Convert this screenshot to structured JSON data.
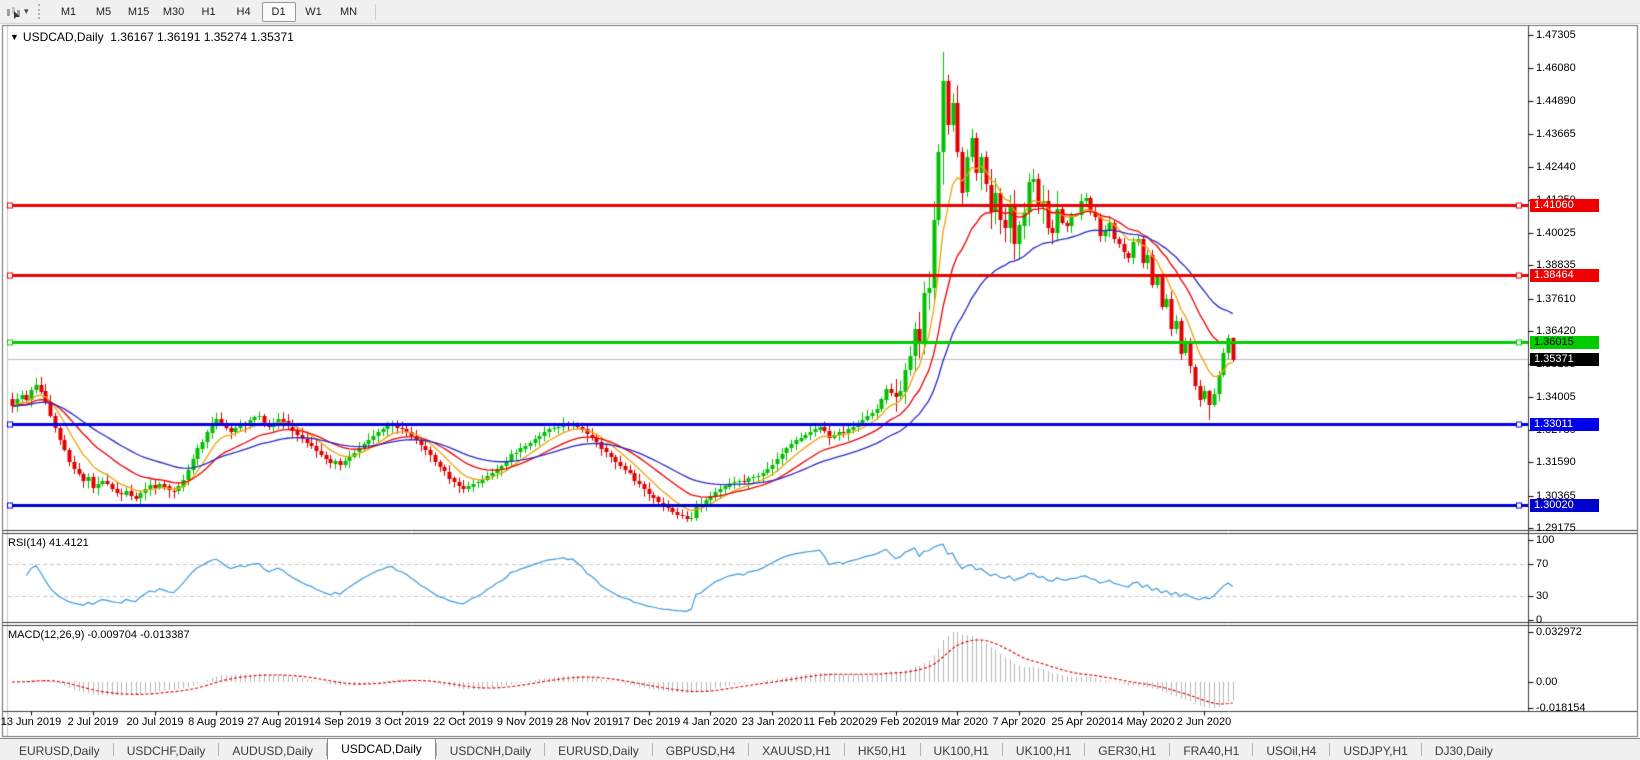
{
  "toolbar": {
    "timeframes": [
      "M1",
      "M5",
      "M15",
      "M30",
      "H1",
      "H4",
      "D1",
      "W1",
      "MN"
    ],
    "active_timeframe": "D1"
  },
  "chart_header": {
    "title": "USDCAD,Daily",
    "ohlc_values": "1.36167 1.36191 1.35274 1.35371"
  },
  "indicators": {
    "rsi_label": "RSI(14) 41.4121",
    "macd_label": "MACD(12,26,9) -0.009704 -0.013387"
  },
  "icons": {
    "title_marker": "▼",
    "dropdown_caret": "▾",
    "tab_scroll_left": "◂",
    "tab_scroll_right": "▸"
  },
  "tabs": {
    "items": [
      "EURUSD,Daily",
      "USDCHF,Daily",
      "AUDUSD,Daily",
      "USDCAD,Daily",
      "USDCNH,Daily",
      "EURUSD,Daily",
      "GBPUSD,H4",
      "XAUUSD,H1",
      "HK50,H1",
      "UK100,H1",
      "UK100,H1",
      "GER30,H1",
      "FRA40,H1",
      "USOil,H4",
      "USDJPY,H1",
      "DJ30,Daily"
    ],
    "active_index": 3
  },
  "chart_data": {
    "type": "candlestick",
    "symbol": "USDCAD",
    "period": "Daily",
    "last_ohlc": {
      "open": "1.36167",
      "high": "1.36191",
      "low": "1.35274",
      "close": "1.35371"
    },
    "price_axis_ticks": [
      "1.47305",
      "1.46080",
      "1.44890",
      "1.43665",
      "1.42440",
      "1.41250",
      "1.40025",
      "1.38835",
      "1.37610",
      "1.36420",
      "1.35195",
      "1.34005",
      "1.32780",
      "1.31590",
      "1.30365",
      "1.29175"
    ],
    "horizontal_lines": [
      {
        "price": 1.4106,
        "label": "1.41060",
        "color": "#ee0000",
        "text_color": "#ffffff"
      },
      {
        "price": 1.38464,
        "label": "1.38464",
        "color": "#ee0000",
        "text_color": "#ffffff"
      },
      {
        "price": 1.36015,
        "label": "1.36015",
        "color": "#00cc00",
        "text_color": "#000000"
      },
      {
        "price": 1.33011,
        "label": "1.33011",
        "color": "#0000ee",
        "text_color": "#ffffff"
      },
      {
        "price": 1.3002,
        "label": "1.30020",
        "color": "#0000cc",
        "text_color": "#ffffff"
      }
    ],
    "current_price": {
      "value": 1.35371,
      "label": "1.35371",
      "line_color": "#bbbbbb",
      "chip_bg": "#000000",
      "chip_text": "#ffffff"
    },
    "candle_colors": {
      "up": "#00c000",
      "down": "#e00000"
    },
    "ma_lines": [
      {
        "name": "fast-ma",
        "period": 8,
        "color": "#eda30a"
      },
      {
        "name": "mid-ma",
        "period": 18,
        "color": "#f00000"
      },
      {
        "name": "slow-ma",
        "period": 35,
        "color": "#2a2ac8"
      }
    ],
    "rsi": {
      "period": 14,
      "current": "41.4121",
      "line_color": "#3f9be0",
      "axis_labels": [
        "100",
        "70",
        "30",
        "0"
      ],
      "level_high": 70,
      "level_low": 30
    },
    "macd": {
      "params": "12,26,9",
      "main": "-0.009704",
      "signal": "-0.013387",
      "axis_labels": [
        "0.032972",
        "0.00",
        "-0.018154"
      ],
      "hist_color": "#b6b6b6",
      "signal_color": "#e00000"
    },
    "x_date_labels": [
      "13 Jun 2019",
      "2 Jul 2019",
      "20 Jul 2019",
      "8 Aug 2019",
      "27 Aug 2019",
      "14 Sep 2019",
      "3 Oct 2019",
      "22 Oct 2019",
      "9 Nov 2019",
      "28 Nov 2019",
      "17 Dec 2019",
      "4 Jan 2020",
      "23 Jan 2020",
      "11 Feb 2020",
      "29 Feb 2020",
      "19 Mar 2020",
      "7 Apr 2020",
      "25 Apr 2020",
      "14 May 2020",
      "2 Jun 2020"
    ],
    "closes": [
      1.3365,
      1.339,
      1.3405,
      1.3388,
      1.3425,
      1.3445,
      1.342,
      1.338,
      1.333,
      1.3285,
      1.324,
      1.3205,
      1.316,
      1.3135,
      1.3115,
      1.309,
      1.3105,
      1.3065,
      1.308,
      1.309,
      1.308,
      1.306,
      1.3045,
      1.304,
      1.3055,
      1.3035,
      1.3025,
      1.3045,
      1.306,
      1.3075,
      1.3065,
      1.308,
      1.307,
      1.3055,
      1.305,
      1.307,
      1.3095,
      1.313,
      1.317,
      1.321,
      1.3235,
      1.327,
      1.3305,
      1.332,
      1.3305,
      1.3285,
      1.327,
      1.3285,
      1.33,
      1.3295,
      1.3315,
      1.3325,
      1.333,
      1.3305,
      1.329,
      1.3305,
      1.332,
      1.331,
      1.329,
      1.3275,
      1.326,
      1.3245,
      1.323,
      1.322,
      1.32,
      1.3185,
      1.317,
      1.3155,
      1.3165,
      1.315,
      1.3165,
      1.318,
      1.3195,
      1.321,
      1.3225,
      1.324,
      1.3255,
      1.327,
      1.328,
      1.3295,
      1.33,
      1.3285,
      1.328,
      1.327,
      1.3255,
      1.324,
      1.322,
      1.3205,
      1.3185,
      1.316,
      1.314,
      1.3125,
      1.31,
      1.3085,
      1.307,
      1.306,
      1.307,
      1.308,
      1.3085,
      1.3095,
      1.311,
      1.312,
      1.3135,
      1.3145,
      1.316,
      1.319,
      1.3195,
      1.321,
      1.322,
      1.323,
      1.3245,
      1.3255,
      1.327,
      1.328,
      1.3285,
      1.329,
      1.33,
      1.3295,
      1.33,
      1.329,
      1.328,
      1.326,
      1.325,
      1.3235,
      1.321,
      1.3195,
      1.318,
      1.316,
      1.3145,
      1.313,
      1.312,
      1.309,
      1.308,
      1.306,
      1.304,
      1.303,
      1.301,
      1.2995,
      1.299,
      1.2975,
      1.2965,
      1.296,
      1.295,
      1.2955,
      1.3,
      1.3005,
      1.302,
      1.3035,
      1.305,
      1.306,
      1.307,
      1.308,
      1.3085,
      1.309,
      1.3085,
      1.31,
      1.3105,
      1.311,
      1.312,
      1.3135,
      1.315,
      1.317,
      1.319,
      1.321,
      1.3225,
      1.324,
      1.325,
      1.326,
      1.327,
      1.328,
      1.329,
      1.3275,
      1.325,
      1.326,
      1.327,
      1.3265,
      1.328,
      1.329,
      1.33,
      1.3315,
      1.333,
      1.334,
      1.3355,
      1.339,
      1.343,
      1.3415,
      1.34,
      1.342,
      1.35,
      1.355,
      1.365,
      1.36,
      1.378,
      1.38,
      1.405,
      1.43,
      1.456,
      1.44,
      1.448,
      1.43,
      1.415,
      1.428,
      1.435,
      1.422,
      1.428,
      1.418,
      1.408,
      1.415,
      1.405,
      1.402,
      1.41,
      1.396,
      1.403,
      1.408,
      1.419,
      1.42,
      1.41,
      1.412,
      1.402,
      1.4,
      1.409,
      1.404,
      1.403,
      1.407,
      1.407,
      1.412,
      1.413,
      1.408,
      1.406,
      1.399,
      1.401,
      1.404,
      1.398,
      1.396,
      1.393,
      1.391,
      1.397,
      1.398,
      1.389,
      1.392,
      1.381,
      1.384,
      1.373,
      1.376,
      1.365,
      1.368,
      1.356,
      1.36,
      1.351,
      1.344,
      1.339,
      1.342,
      1.337,
      1.341,
      1.348,
      1.356,
      1.3617,
      1.35371
    ],
    "candle_overrides": {
      "194": [
        1.38,
        1.412,
        1.374,
        1.405
      ],
      "196": [
        1.43,
        1.4668,
        1.418,
        1.456
      ],
      "252": [
        1.342,
        1.3425,
        1.3315,
        1.337
      ],
      "257": [
        1.36167,
        1.36191,
        1.35274,
        1.35371
      ]
    }
  }
}
